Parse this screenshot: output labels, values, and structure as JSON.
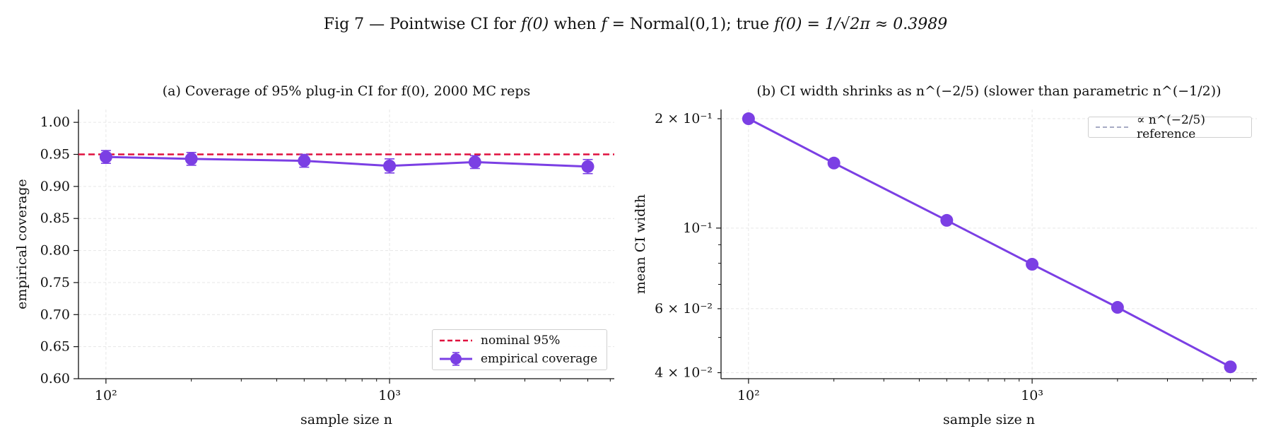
{
  "figure": {
    "suptitle_prefix": "Fig 7 — Pointwise CI for",
    "suptitle_f0": "f(0)",
    "suptitle_when": "when",
    "suptitle_f": "f =",
    "suptitle_normal": "Normal(0,1); true",
    "suptitle_expr": "f(0) = 1/√2π ≈ 0.3989"
  },
  "colors": {
    "series": "#7b3fe4",
    "nominal": "#e0103f",
    "reference": "#8a8fb0",
    "grid": "#e6e6e6",
    "axis": "#111111"
  },
  "chart_data": [
    {
      "type": "line",
      "title": "(a) Coverage of 95% plug-in CI for f(0), 2000 MC reps",
      "xlabel": "sample size n",
      "ylabel": "empirical coverage",
      "xscale": "log",
      "xlim": [
        80,
        6200
      ],
      "ylim": [
        0.6,
        1.02
      ],
      "grid": true,
      "legend_position": "lower-right",
      "x_ticks": [
        100,
        1000
      ],
      "x_tick_labels": [
        "10²",
        "10³"
      ],
      "y_ticks": [
        0.6,
        0.65,
        0.7,
        0.75,
        0.8,
        0.85,
        0.9,
        0.95,
        1.0
      ],
      "y_tick_labels": [
        "0.60",
        "0.65",
        "0.70",
        "0.75",
        "0.80",
        "0.85",
        "0.90",
        "0.95",
        "1.00"
      ],
      "hline": {
        "name": "nominal 95%",
        "y": 0.95,
        "style": "dashed"
      },
      "series": [
        {
          "name": "empirical coverage",
          "x": [
            100,
            200,
            500,
            1000,
            2000,
            5000
          ],
          "y": [
            0.946,
            0.943,
            0.94,
            0.932,
            0.938,
            0.931
          ],
          "yerr": [
            0.01,
            0.01,
            0.01,
            0.011,
            0.01,
            0.011
          ]
        }
      ]
    },
    {
      "type": "line",
      "title": "(b) CI width shrinks as n^(−2/5) (slower than parametric n^(−1/2))",
      "xlabel": "sample size n",
      "ylabel": "mean CI width",
      "xscale": "log",
      "yscale": "log",
      "xlim": [
        80,
        6200
      ],
      "ylim": [
        0.0385,
        0.212
      ],
      "grid": true,
      "legend_position": "top-right",
      "x_ticks": [
        100,
        1000
      ],
      "x_tick_labels": [
        "10²",
        "10³"
      ],
      "y_ticks": [
        0.04,
        0.06,
        0.1,
        0.2
      ],
      "y_tick_labels": [
        "4 × 10⁻²",
        "6 × 10⁻²",
        "10⁻¹",
        "2 × 10⁻¹"
      ],
      "reference": {
        "name": "∝ n^(−2/5) reference",
        "style": "dashed"
      },
      "series": [
        {
          "name": "mean CI width",
          "x": [
            100,
            200,
            500,
            1000,
            2000,
            5000
          ],
          "y": [
            0.2,
            0.151,
            0.105,
            0.0795,
            0.0605,
            0.0415
          ]
        }
      ]
    }
  ]
}
